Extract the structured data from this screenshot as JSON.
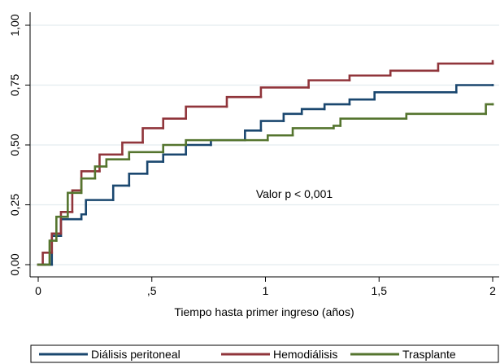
{
  "chart_data": {
    "type": "step",
    "annotation": "Valor p < 0,001",
    "x_label": "Tiempo hasta primer ingreso (años)",
    "xlim": [
      0,
      2
    ],
    "ylim": [
      0,
      1
    ],
    "xticks": [
      0,
      {
        "value": 0.5,
        "label": ",5"
      },
      1,
      {
        "value": 1.5,
        "label": "1,5"
      },
      2
    ],
    "yticks": [
      {
        "value": 0,
        "label": "0,00"
      },
      {
        "value": 0.25,
        "label": "0,25"
      },
      {
        "value": 0.5,
        "label": "0,50"
      },
      {
        "value": 0.75,
        "label": "0,75"
      },
      {
        "value": 1,
        "label": "1,00"
      }
    ],
    "grid": true,
    "legend": "bottom",
    "series": [
      {
        "name": "Diálisis peritoneal",
        "color": "#1a476f",
        "x": [
          0,
          0.03,
          0.06,
          0.1,
          0.19,
          0.21,
          0.33,
          0.4,
          0.48,
          0.55,
          0.65,
          0.76,
          0.91,
          0.98,
          1.08,
          1.16,
          1.26,
          1.37,
          1.48,
          1.84,
          2.0
        ],
        "values": [
          0,
          0,
          0.12,
          0.19,
          0.21,
          0.27,
          0.33,
          0.38,
          0.43,
          0.46,
          0.5,
          0.52,
          0.56,
          0.6,
          0.63,
          0.65,
          0.67,
          0.69,
          0.72,
          0.75,
          0.75
        ]
      },
      {
        "name": "Hemodiálisis",
        "color": "#90353b",
        "x": [
          0,
          0.02,
          0.06,
          0.1,
          0.15,
          0.19,
          0.27,
          0.37,
          0.46,
          0.55,
          0.65,
          0.83,
          0.98,
          1.19,
          1.37,
          1.55,
          1.76,
          2.0
        ],
        "values": [
          0,
          0.05,
          0.13,
          0.22,
          0.31,
          0.39,
          0.46,
          0.51,
          0.57,
          0.61,
          0.66,
          0.7,
          0.74,
          0.77,
          0.79,
          0.81,
          0.84,
          0.85
        ]
      },
      {
        "name": "Trasplante",
        "color": "#55752f",
        "x": [
          0,
          0.03,
          0.05,
          0.08,
          0.13,
          0.19,
          0.25,
          0.3,
          0.4,
          0.55,
          0.65,
          1.01,
          1.12,
          1.3,
          1.33,
          1.62,
          1.97,
          2.0
        ],
        "values": [
          0,
          0,
          0.1,
          0.2,
          0.3,
          0.36,
          0.41,
          0.44,
          0.47,
          0.5,
          0.52,
          0.54,
          0.57,
          0.58,
          0.61,
          0.63,
          0.67,
          0.67
        ]
      }
    ]
  }
}
